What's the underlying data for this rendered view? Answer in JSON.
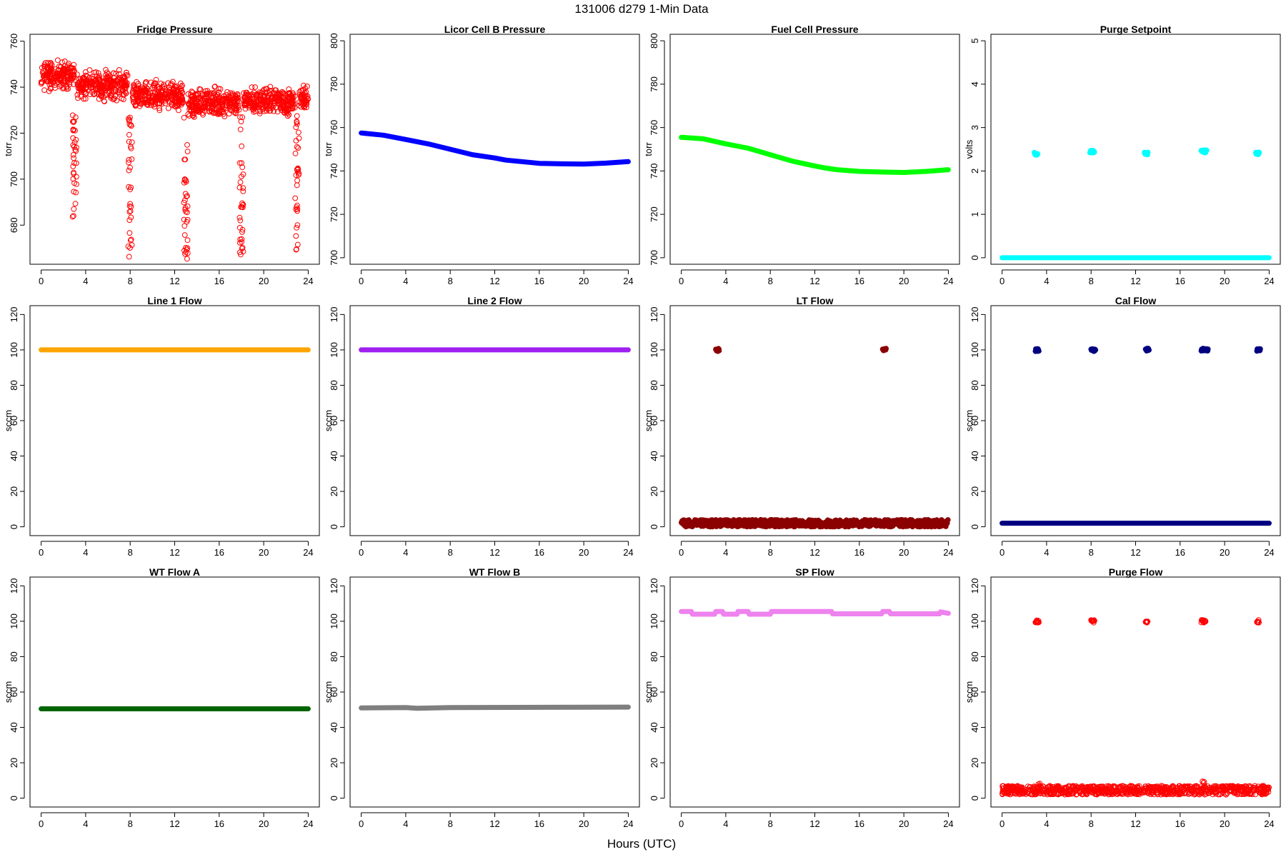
{
  "figure": {
    "title": "131006   d279   1-Min Data",
    "xlabel": "Hours (UTC)"
  },
  "chart_data": [
    {
      "type": "scatter",
      "title": "Fridge Pressure",
      "xlabel": "",
      "ylabel": "torr",
      "color": "#ff0000",
      "marker": "open-circle",
      "xlim": [
        -1,
        25
      ],
      "ylim": [
        663,
        763
      ],
      "xticks": [
        0,
        4,
        8,
        12,
        16,
        20,
        24
      ],
      "yticks": [
        680,
        700,
        720,
        740,
        760
      ],
      "series": [
        {
          "segments": [
            [
              0,
              3,
              745,
              3.5
            ],
            [
              3.2,
              7.8,
              741,
              3.5
            ],
            [
              8.2,
              12.8,
              736,
              3.5
            ],
            [
              13.2,
              17.8,
              733,
              3.5
            ],
            [
              18.2,
              22.8,
              734,
              3.5
            ],
            [
              23.2,
              24,
              735,
              3
            ]
          ],
          "dips": [
            [
              3,
              682
            ],
            [
              8,
              666
            ],
            [
              13,
              665
            ],
            [
              18,
              667
            ],
            [
              23,
              669
            ]
          ]
        }
      ]
    },
    {
      "type": "line",
      "title": "Licor Cell B Pressure",
      "xlabel": "",
      "ylabel": "torr",
      "color": "#0000ff",
      "xlim": [
        -1,
        25
      ],
      "ylim": [
        697,
        803
      ],
      "xticks": [
        0,
        4,
        8,
        12,
        16,
        20,
        24
      ],
      "yticks": [
        700,
        720,
        740,
        760,
        780,
        800
      ],
      "series": [
        {
          "x": [
            0,
            2,
            4,
            6,
            8,
            10,
            12,
            13,
            14,
            16,
            18,
            20,
            22,
            24
          ],
          "y": [
            757.5,
            756.5,
            754.5,
            752.5,
            750,
            747.5,
            746,
            745,
            744.5,
            743.5,
            743.3,
            743.2,
            743.6,
            744.3
          ]
        }
      ]
    },
    {
      "type": "line",
      "title": "Fuel Cell Pressure",
      "xlabel": "",
      "ylabel": "torr",
      "color": "#00ff00",
      "xlim": [
        -1,
        25
      ],
      "ylim": [
        697,
        803
      ],
      "xticks": [
        0,
        4,
        8,
        12,
        16,
        20,
        24
      ],
      "yticks": [
        700,
        720,
        740,
        760,
        780,
        800
      ],
      "series": [
        {
          "x": [
            0,
            2,
            4,
            6,
            8,
            10,
            12,
            13,
            14,
            16,
            18,
            20,
            22,
            24
          ],
          "y": [
            755.5,
            754.8,
            752.5,
            750.5,
            747.5,
            744.5,
            742.3,
            741.3,
            740.6,
            739.8,
            739.5,
            739.3,
            739.8,
            740.6
          ]
        }
      ]
    },
    {
      "type": "scatter",
      "title": "Purge Setpoint",
      "xlabel": "",
      "ylabel": "volts",
      "color": "#00ffff",
      "xlim": [
        -1,
        25
      ],
      "ylim": [
        -0.15,
        5.15
      ],
      "xticks": [
        0,
        4,
        8,
        12,
        16,
        20,
        24
      ],
      "yticks": [
        0,
        1,
        2,
        3,
        4,
        5
      ],
      "series": [
        {
          "baseline": 0,
          "events": [
            [
              2.9,
              3.2,
              2.4
            ],
            [
              7.9,
              8.3,
              2.45
            ],
            [
              12.8,
              13.1,
              2.4
            ],
            [
              17.9,
              18.4,
              2.45
            ],
            [
              22.8,
              23.1,
              2.4
            ]
          ]
        }
      ]
    },
    {
      "type": "line",
      "title": "Line 1 Flow",
      "xlabel": "",
      "ylabel": "sccm",
      "color": "#ffa500",
      "xlim": [
        -1,
        25
      ],
      "ylim": [
        -5,
        125
      ],
      "xticks": [
        0,
        4,
        8,
        12,
        16,
        20,
        24
      ],
      "yticks": [
        0,
        20,
        40,
        60,
        80,
        100,
        120
      ],
      "series": [
        {
          "x": [
            0,
            24
          ],
          "y": [
            100,
            100
          ]
        }
      ]
    },
    {
      "type": "line",
      "title": "Line 2 Flow",
      "xlabel": "",
      "ylabel": "sccm",
      "color": "#a020f0",
      "xlim": [
        -1,
        25
      ],
      "ylim": [
        -5,
        125
      ],
      "xticks": [
        0,
        4,
        8,
        12,
        16,
        20,
        24
      ],
      "yticks": [
        0,
        20,
        40,
        60,
        80,
        100,
        120
      ],
      "series": [
        {
          "x": [
            0,
            24
          ],
          "y": [
            100,
            100
          ]
        }
      ]
    },
    {
      "type": "scatter",
      "title": "LT Flow",
      "xlabel": "",
      "ylabel": "sccm",
      "color": "#8b0000",
      "xlim": [
        -1,
        25
      ],
      "ylim": [
        -5,
        125
      ],
      "xticks": [
        0,
        4,
        8,
        12,
        16,
        20,
        24
      ],
      "yticks": [
        0,
        20,
        40,
        60,
        80,
        100,
        120
      ],
      "series": [
        {
          "baseline": 2,
          "band": 2,
          "events": [
            [
              3.1,
              3.4,
              100
            ],
            [
              18.1,
              18.4,
              100
            ]
          ]
        }
      ]
    },
    {
      "type": "scatter",
      "title": "Cal Flow",
      "xlabel": "",
      "ylabel": "sccm",
      "color": "#000080",
      "xlim": [
        -1,
        25
      ],
      "ylim": [
        -5,
        125
      ],
      "xticks": [
        0,
        4,
        8,
        12,
        16,
        20,
        24
      ],
      "yticks": [
        0,
        20,
        40,
        60,
        80,
        100,
        120
      ],
      "series": [
        {
          "baseline": 2,
          "events": [
            [
              3.0,
              3.3,
              100
            ],
            [
              8.0,
              8.4,
              100
            ],
            [
              12.9,
              13.2,
              100
            ],
            [
              17.9,
              18.5,
              100
            ],
            [
              22.9,
              23.2,
              100
            ]
          ]
        }
      ]
    },
    {
      "type": "line",
      "title": "WT Flow A",
      "xlabel": "",
      "ylabel": "sccm",
      "color": "#006400",
      "xlim": [
        -1,
        25
      ],
      "ylim": [
        -5,
        125
      ],
      "xticks": [
        0,
        4,
        8,
        12,
        16,
        20,
        24
      ],
      "yticks": [
        0,
        20,
        40,
        60,
        80,
        100,
        120
      ],
      "series": [
        {
          "x": [
            0,
            24
          ],
          "y": [
            50.5,
            50.5
          ]
        }
      ]
    },
    {
      "type": "line",
      "title": "WT Flow B",
      "xlabel": "",
      "ylabel": "sccm",
      "color": "#7f7f7f",
      "xlim": [
        -1,
        25
      ],
      "ylim": [
        -5,
        125
      ],
      "xticks": [
        0,
        4,
        8,
        12,
        16,
        20,
        24
      ],
      "yticks": [
        0,
        20,
        40,
        60,
        80,
        100,
        120
      ],
      "series": [
        {
          "x": [
            0,
            4,
            5,
            8,
            24
          ],
          "y": [
            51,
            51.2,
            50.8,
            51.2,
            51.5
          ]
        }
      ]
    },
    {
      "type": "line",
      "title": "SP Flow",
      "xlabel": "",
      "ylabel": "sccm",
      "color": "#ee82ee",
      "xlim": [
        -1,
        25
      ],
      "ylim": [
        -5,
        125
      ],
      "xticks": [
        0,
        4,
        8,
        12,
        16,
        20,
        24
      ],
      "yticks": [
        0,
        20,
        40,
        60,
        80,
        100,
        120
      ],
      "series": [
        {
          "x": [
            0,
            0.9,
            1.0,
            3.0,
            3.1,
            3.7,
            3.8,
            5.0,
            5.1,
            6.0,
            6.1,
            8.0,
            8.1,
            13.5,
            13.6,
            18.0,
            18.1,
            18.7,
            18.8,
            23.2,
            23.3,
            24
          ],
          "y": [
            105.5,
            105.5,
            104,
            104,
            105.5,
            105.5,
            104,
            104,
            105.5,
            105.5,
            104,
            104,
            105.5,
            105.5,
            104.2,
            104.2,
            105.5,
            105.5,
            104.2,
            104.2,
            105.3,
            104.5
          ]
        }
      ]
    },
    {
      "type": "scatter",
      "title": "Purge Flow",
      "xlabel": "",
      "ylabel": "sccm",
      "color": "#ff0000",
      "marker": "open-circle",
      "xlim": [
        -1,
        25
      ],
      "ylim": [
        -5,
        125
      ],
      "xticks": [
        0,
        4,
        8,
        12,
        16,
        20,
        24
      ],
      "yticks": [
        0,
        20,
        40,
        60,
        80,
        100,
        120
      ],
      "series": [
        {
          "baseline": 4.5,
          "band": 2.5,
          "events": [
            [
              3.0,
              3.3,
              100
            ],
            [
              8.0,
              8.3,
              100
            ],
            [
              12.9,
              13.1,
              100
            ],
            [
              17.9,
              18.3,
              100
            ],
            [
              22.9,
              23.1,
              100
            ]
          ],
          "spikes": [
            [
              3.3,
              9
            ],
            [
              18.1,
              10
            ]
          ]
        }
      ]
    }
  ]
}
